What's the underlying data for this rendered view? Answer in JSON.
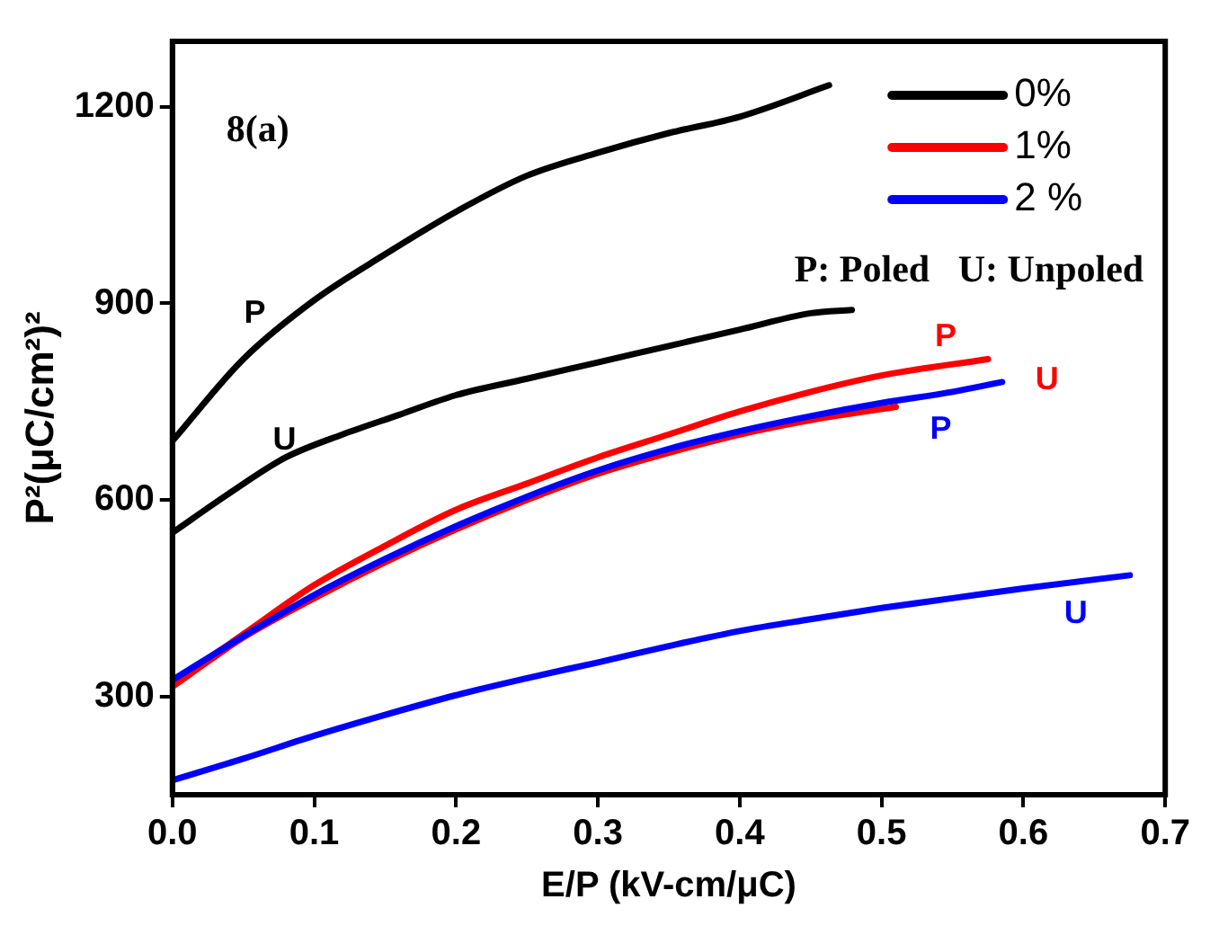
{
  "chart_data": {
    "type": "line",
    "xlabel": "E/P (kV-cm/μC)",
    "ylabel": "P²(μC/cm²)²",
    "xlim": [
      0,
      0.7
    ],
    "xticks": [
      {
        "value": 0,
        "label": "0.0"
      },
      0.1,
      0.2,
      0.3,
      0.4,
      0.5,
      0.6,
      0.7
    ],
    "ylim": [
      150,
      1300
    ],
    "yticks": [
      300,
      600,
      900,
      1200
    ],
    "grid": false,
    "legend": "top right",
    "marker": "none",
    "line_style": "solid",
    "series": [
      {
        "name": "0%",
        "color": "#000000",
        "x": [
          0,
          0.05,
          0.1,
          0.15,
          0.2,
          0.25,
          0.3,
          0.35,
          0.4,
          0.463
        ],
        "values": [
          690,
          815,
          905,
          975,
          1040,
          1095,
          1130,
          1160,
          1185,
          1233
        ]
      },
      {
        "color": "#000000",
        "x": [
          0,
          0.04,
          0.08,
          0.12,
          0.16,
          0.2,
          0.25,
          0.3,
          0.35,
          0.4,
          0.45,
          0.479
        ],
        "values": [
          550,
          610,
          665,
          700,
          730,
          760,
          785,
          810,
          835,
          860,
          885,
          890
        ]
      },
      {
        "name": "1%",
        "color": "#ff0000",
        "x": [
          0,
          0.05,
          0.1,
          0.15,
          0.2,
          0.25,
          0.3,
          0.35,
          0.4,
          0.45,
          0.5,
          0.575
        ],
        "values": [
          320,
          395,
          470,
          530,
          585,
          625,
          665,
          700,
          735,
          765,
          790,
          815
        ]
      },
      {
        "color": "#ff0000",
        "x": [
          0,
          0.05,
          0.1,
          0.15,
          0.2,
          0.25,
          0.3,
          0.35,
          0.4,
          0.45,
          0.51
        ],
        "values": [
          315,
          390,
          450,
          505,
          555,
          600,
          640,
          672,
          700,
          722,
          742
        ]
      },
      {
        "name": "2 %",
        "color": "#0000ff",
        "x": [
          0,
          0.05,
          0.1,
          0.15,
          0.2,
          0.25,
          0.3,
          0.35,
          0.4,
          0.45,
          0.5,
          0.55,
          0.585
        ],
        "values": [
          325,
          392,
          455,
          510,
          560,
          605,
          645,
          678,
          705,
          728,
          748,
          765,
          780
        ]
      },
      {
        "color": "#0000ff",
        "x": [
          0,
          0.05,
          0.1,
          0.15,
          0.2,
          0.25,
          0.3,
          0.35,
          0.4,
          0.45,
          0.5,
          0.55,
          0.6,
          0.675
        ],
        "values": [
          172,
          205,
          240,
          272,
          302,
          328,
          352,
          377,
          400,
          418,
          435,
          450,
          465,
          485
        ]
      }
    ],
    "annotations": [
      "8(a)",
      "P: Poled   U: Unpoled",
      "P",
      "U",
      "P",
      "U",
      "P",
      "U"
    ]
  }
}
